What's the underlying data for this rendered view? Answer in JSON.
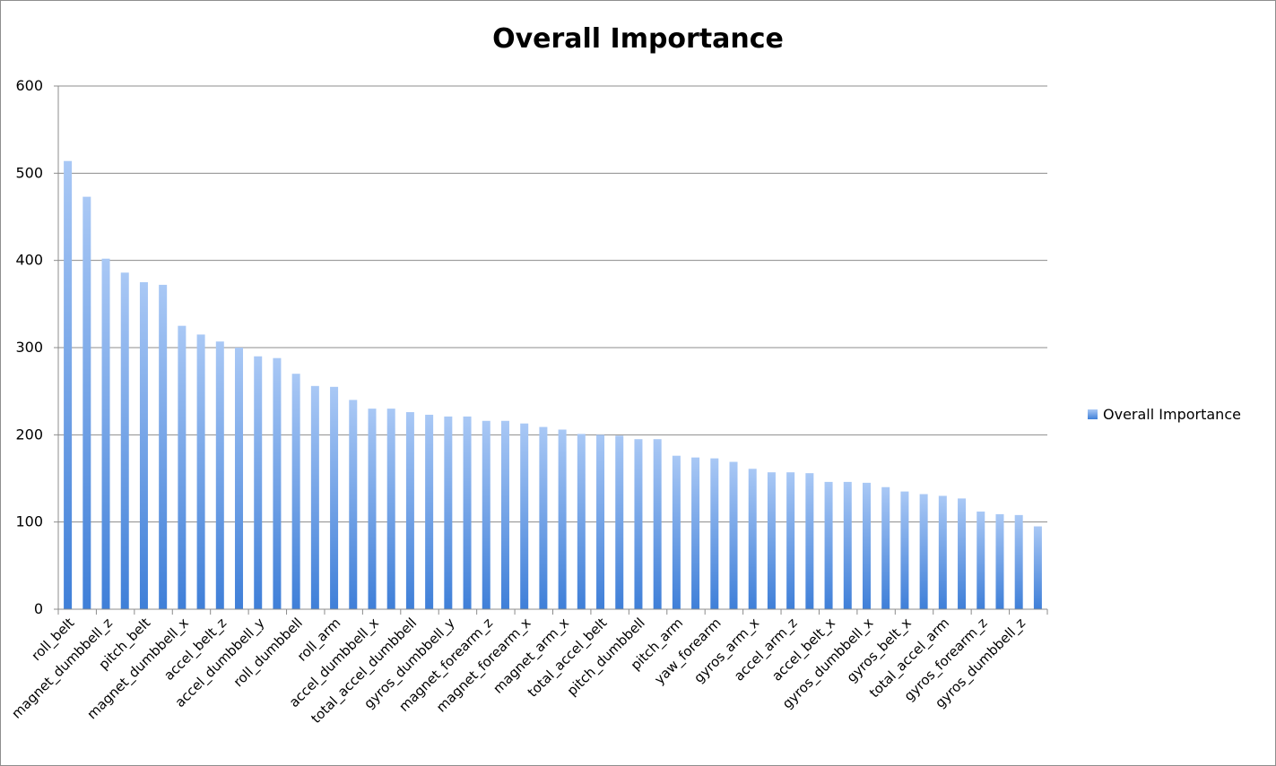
{
  "chart_data": {
    "type": "bar",
    "title": "Overall Importance",
    "xlabel": "",
    "ylabel": "",
    "ylim": [
      0,
      600
    ],
    "yticks": [
      0,
      100,
      200,
      300,
      400,
      500,
      600
    ],
    "grid": true,
    "legend": "right",
    "colors": {
      "bar_top": "#a9c8f5",
      "bar_bottom": "#3f7fd8",
      "grid": "#8c8c8c"
    },
    "categories": [
      "roll_belt",
      "",
      "magnet_dumbbell_z",
      "",
      "pitch_belt",
      "",
      "magnet_dumbbell_x",
      "",
      "accel_belt_z",
      "",
      "accel_dumbbell_y",
      "",
      "roll_dumbbell",
      "",
      "roll_arm",
      "",
      "accel_dumbbell_x",
      "",
      "total_accel_dumbbell",
      "",
      "gyros_dumbbell_y",
      "",
      "magnet_forearm_z",
      "",
      "magnet_forearm_x",
      "",
      "magnet_arm_x",
      "",
      "total_accel_belt",
      "",
      "pitch_dumbbell",
      "",
      "pitch_arm",
      "",
      "yaw_forearm",
      "",
      "gyros_arm_x",
      "",
      "accel_arm_z",
      "",
      "accel_belt_x",
      "",
      "gyros_dumbbell_x",
      "",
      "gyros_belt_x",
      "",
      "total_accel_arm",
      "",
      "gyros_forearm_z",
      "",
      "gyros_dumbbell_z",
      ""
    ],
    "series": [
      {
        "name": "Overall Importance",
        "values": [
          514,
          473,
          402,
          386,
          375,
          372,
          325,
          315,
          307,
          300,
          290,
          288,
          270,
          256,
          255,
          240,
          230,
          230,
          226,
          223,
          221,
          221,
          216,
          216,
          213,
          209,
          206,
          201,
          200,
          199,
          195,
          195,
          176,
          174,
          173,
          169,
          161,
          157,
          157,
          156,
          146,
          146,
          145,
          140,
          135,
          132,
          130,
          127,
          112,
          109,
          108,
          95
        ]
      }
    ]
  }
}
